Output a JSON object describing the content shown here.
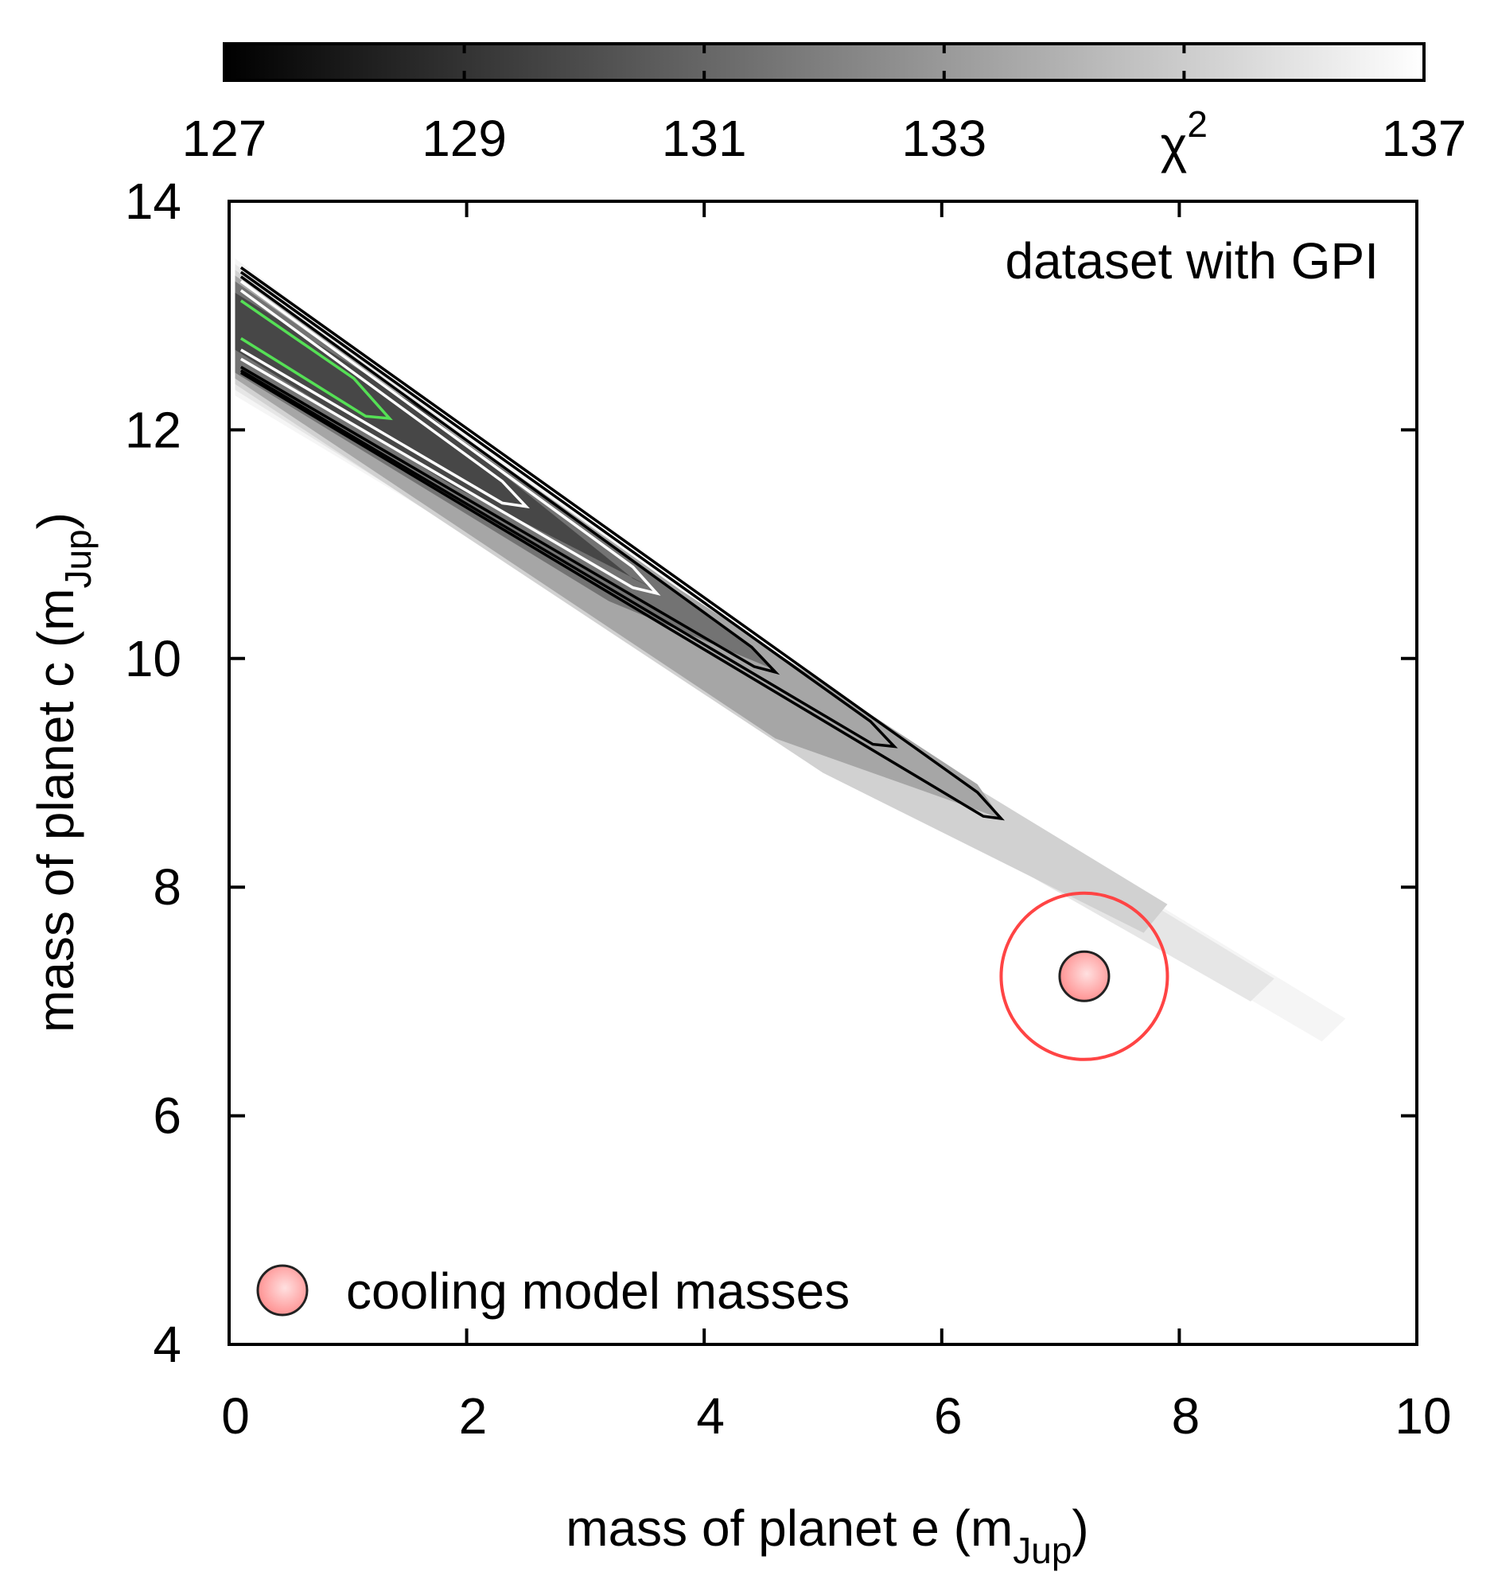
{
  "chart_data": {
    "type": "heatmap",
    "annotation": "dataset with GPI",
    "xaxis": {
      "label_main": "mass of planet e (m",
      "label_sub": "Jup",
      "label_close": ")",
      "range": [
        0,
        10
      ],
      "ticks": [
        0,
        2,
        4,
        6,
        8,
        10
      ],
      "tick_labels": [
        "0",
        "2",
        "4",
        "6",
        "8",
        "10"
      ]
    },
    "yaxis": {
      "label_main": "mass of planet c (m",
      "label_sub": "Jup",
      "label_close": ")",
      "range": [
        4,
        14
      ],
      "ticks": [
        4,
        6,
        8,
        10,
        12,
        14
      ],
      "tick_labels": [
        "4",
        "6",
        "8",
        "10",
        "12",
        "14"
      ]
    },
    "colorbar": {
      "range": [
        127,
        137
      ],
      "ticks": [
        127,
        129,
        131,
        133,
        135,
        137
      ],
      "tick_labels": [
        "127",
        "129",
        "131",
        "133",
        "",
        "137"
      ],
      "label_main": "χ",
      "label_sup": "2",
      "label_value": 135,
      "colors": [
        "#000000",
        "#ffffff"
      ]
    },
    "fill_layers": [
      {
        "chi2": 136.6,
        "polygon": [
          [
            0.05,
            13.5
          ],
          [
            5.2,
            9.5
          ],
          [
            9.4,
            6.85
          ],
          [
            9.2,
            6.65
          ],
          [
            5.5,
            8.9
          ],
          [
            0.05,
            12.3
          ]
        ]
      },
      {
        "chi2": 136.0,
        "polygon": [
          [
            0.05,
            13.45
          ],
          [
            5.0,
            9.6
          ],
          [
            8.8,
            7.2
          ],
          [
            8.6,
            7.0
          ],
          [
            5.3,
            8.95
          ],
          [
            0.05,
            12.35
          ]
        ]
      },
      {
        "chi2": 135.2,
        "polygon": [
          [
            0.05,
            13.4
          ],
          [
            4.5,
            10.0
          ],
          [
            7.9,
            7.85
          ],
          [
            7.7,
            7.6
          ],
          [
            5.0,
            9.0
          ],
          [
            0.05,
            12.4
          ]
        ]
      },
      {
        "chi2": 133.5,
        "polygon": [
          [
            0.05,
            13.35
          ],
          [
            3.8,
            10.6
          ],
          [
            6.3,
            8.9
          ],
          [
            6.5,
            8.6
          ],
          [
            4.6,
            9.3
          ],
          [
            0.05,
            12.45
          ]
        ]
      },
      {
        "chi2": 131.5,
        "polygon": [
          [
            0.05,
            13.3
          ],
          [
            2.8,
            11.3
          ],
          [
            4.4,
            10.1
          ],
          [
            4.6,
            9.9
          ],
          [
            3.2,
            10.5
          ],
          [
            0.05,
            12.5
          ]
        ]
      },
      {
        "chi2": 129.8,
        "polygon": [
          [
            0.05,
            13.2
          ],
          [
            1.6,
            12.2
          ],
          [
            3.4,
            10.7
          ],
          [
            3.6,
            10.6
          ],
          [
            1.9,
            11.5
          ],
          [
            0.05,
            12.7
          ]
        ]
      }
    ],
    "contours": [
      {
        "color": "#000000",
        "points": [
          [
            0.1,
            13.42
          ],
          [
            6.3,
            8.83
          ],
          [
            6.5,
            8.6
          ],
          [
            6.35,
            8.62
          ],
          [
            0.1,
            12.5
          ]
        ]
      },
      {
        "color": "#000000",
        "points": [
          [
            0.1,
            13.38
          ],
          [
            5.4,
            9.45
          ],
          [
            5.6,
            9.23
          ],
          [
            5.42,
            9.25
          ],
          [
            0.1,
            12.52
          ]
        ]
      },
      {
        "color": "#000000",
        "points": [
          [
            0.1,
            13.34
          ],
          [
            4.4,
            10.1
          ],
          [
            4.6,
            9.88
          ],
          [
            4.42,
            9.93
          ],
          [
            0.1,
            12.55
          ]
        ]
      },
      {
        "color": "#ffffff",
        "points": [
          [
            0.1,
            13.3
          ],
          [
            3.4,
            10.8
          ],
          [
            3.6,
            10.57
          ],
          [
            3.4,
            10.62
          ],
          [
            0.1,
            12.62
          ]
        ]
      },
      {
        "color": "#ffffff",
        "points": [
          [
            0.1,
            13.22
          ],
          [
            2.3,
            11.55
          ],
          [
            2.5,
            11.33
          ],
          [
            2.3,
            11.36
          ],
          [
            0.1,
            12.7
          ]
        ]
      },
      {
        "color": "#55e055",
        "points": [
          [
            0.1,
            13.13
          ],
          [
            1.05,
            12.45
          ],
          [
            1.35,
            12.1
          ],
          [
            1.15,
            12.12
          ],
          [
            0.1,
            12.8
          ]
        ]
      }
    ],
    "marker": {
      "x": 7.2,
      "y": 7.22,
      "err_circle_radius": 0.7,
      "fill": "#ff9f9f",
      "ring": "#ff4444"
    },
    "legend": {
      "placement": "bottom-left",
      "entries": [
        {
          "label": "cooling model masses"
        }
      ]
    }
  }
}
